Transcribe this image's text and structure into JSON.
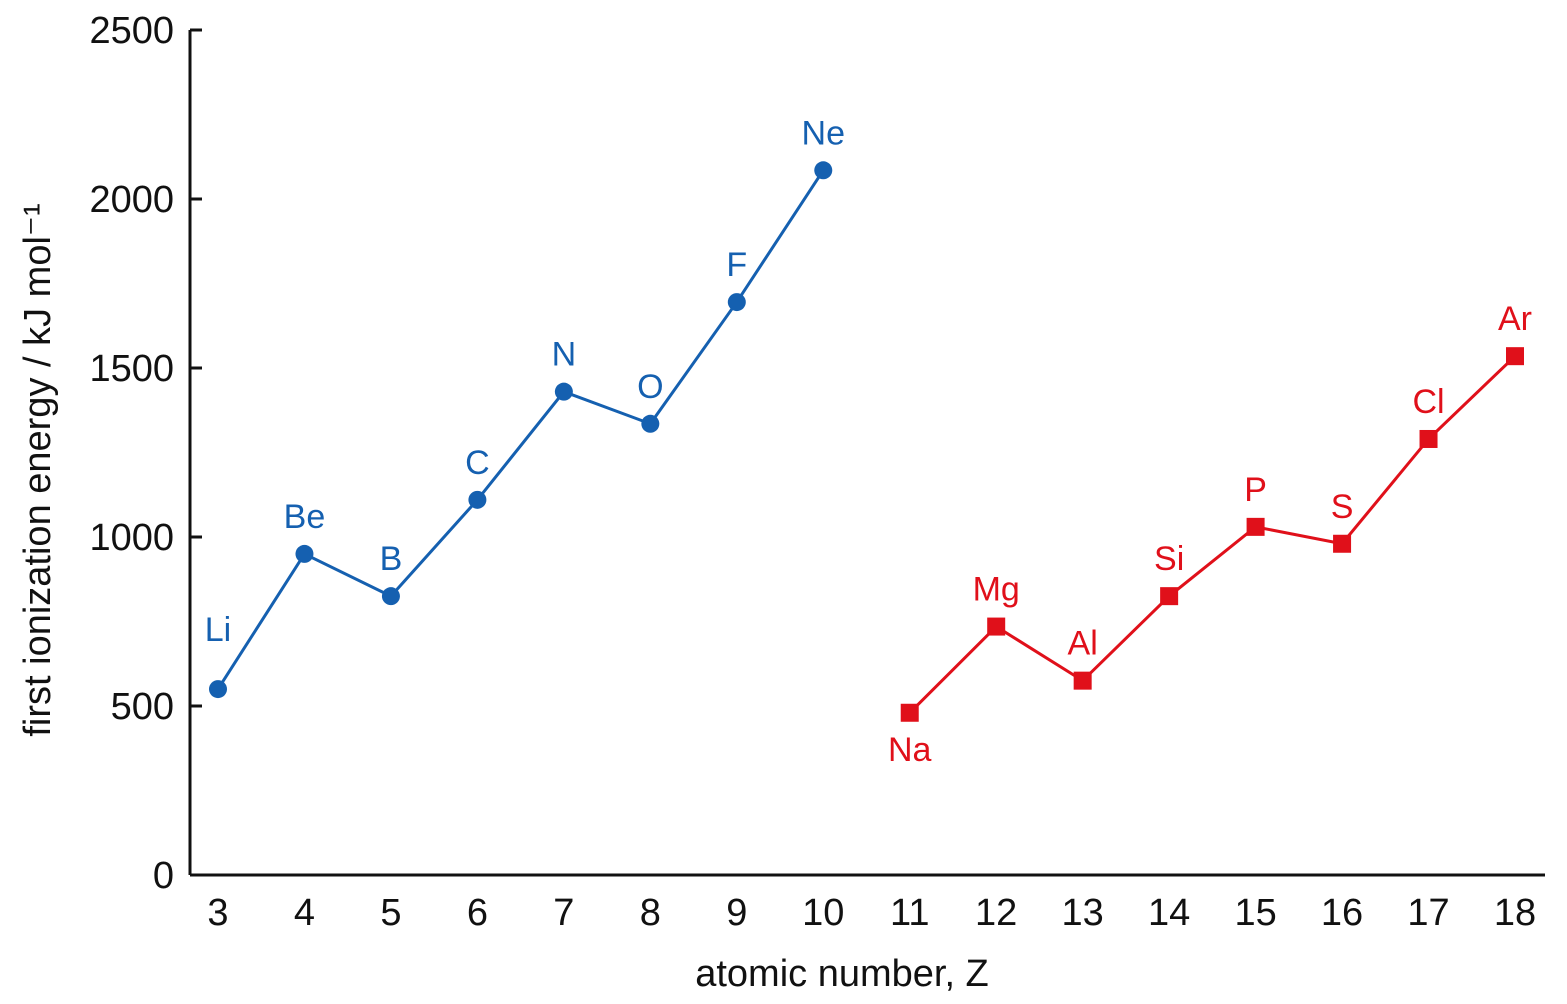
{
  "chart_data": {
    "type": "line",
    "title": "",
    "xlabel": "atomic number, Z",
    "ylabel": "first ionization energy / kJ mol⁻¹",
    "xlim": [
      3,
      18
    ],
    "ylim": [
      0,
      2500
    ],
    "xticks": [
      3,
      4,
      5,
      6,
      7,
      8,
      9,
      10,
      11,
      12,
      13,
      14,
      15,
      16,
      17,
      18
    ],
    "yticks": [
      0,
      500,
      1000,
      1500,
      2000,
      2500
    ],
    "grid": false,
    "series": [
      {
        "color": "#1560b0",
        "marker": "circle",
        "x": [
          3,
          4,
          5,
          6,
          7,
          8,
          9,
          10
        ],
        "y": [
          550,
          950,
          825,
          1110,
          1430,
          1335,
          1695,
          2085
        ],
        "labels": [
          "Li",
          "Be",
          "B",
          "C",
          "N",
          "O",
          "F",
          "Ne"
        ]
      },
      {
        "color": "#e0101a",
        "marker": "square",
        "x": [
          11,
          12,
          13,
          14,
          15,
          16,
          17,
          18
        ],
        "y": [
          480,
          735,
          575,
          825,
          1030,
          980,
          1290,
          1535
        ],
        "labels": [
          "Na",
          "Mg",
          "Al",
          "Si",
          "P",
          "S",
          "Cl",
          "Ar"
        ]
      }
    ]
  }
}
